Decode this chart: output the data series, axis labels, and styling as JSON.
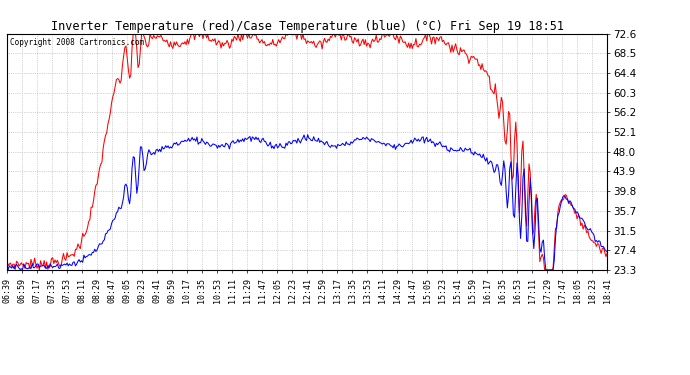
{
  "title": "Inverter Temperature (red)/Case Temperature (blue) (°C) Fri Sep 19 18:51",
  "copyright": "Copyright 2008 Cartronics.com",
  "background_color": "#ffffff",
  "plot_bg_color": "#ffffff",
  "grid_color": "#aaaaaa",
  "red_color": "red",
  "blue_color": "blue",
  "ylim_min": 23.3,
  "ylim_max": 72.6,
  "yticks": [
    23.3,
    27.4,
    31.5,
    35.7,
    39.8,
    43.9,
    48.0,
    52.1,
    56.2,
    60.3,
    64.4,
    68.5,
    72.6
  ],
  "x_tick_labels": [
    "06:39",
    "06:59",
    "07:17",
    "07:35",
    "07:53",
    "08:11",
    "08:29",
    "08:47",
    "09:05",
    "09:23",
    "09:41",
    "09:59",
    "10:17",
    "10:35",
    "10:53",
    "11:11",
    "11:29",
    "11:47",
    "12:05",
    "12:23",
    "12:41",
    "12:59",
    "13:17",
    "13:35",
    "13:53",
    "14:11",
    "14:29",
    "14:47",
    "15:05",
    "15:23",
    "15:41",
    "15:59",
    "16:17",
    "16:35",
    "16:53",
    "17:11",
    "17:29",
    "17:47",
    "18:05",
    "18:23",
    "18:41"
  ],
  "num_points": 500
}
